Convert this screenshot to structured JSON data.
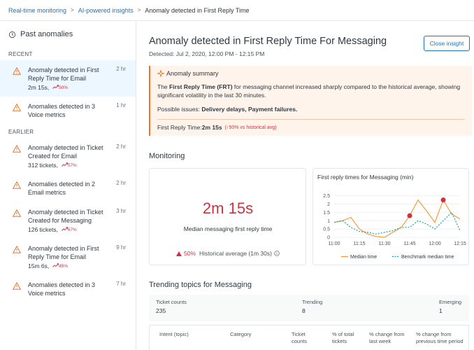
{
  "breadcrumb": {
    "items": [
      "Real-time monitoring",
      "AI-powered insights"
    ],
    "current": "Anomaly detected in First Reply Time"
  },
  "sidebar": {
    "title": "Past anomalies",
    "sections": [
      {
        "label": "RECENT",
        "items": [
          {
            "title": "Anomaly detected in First Reply Time for Email",
            "time": "2 hr",
            "value": "2m 15s,",
            "pct": "50%",
            "active": true
          },
          {
            "title": "Anomalies detected in 3 Voice metrics",
            "time": "1 hr"
          }
        ]
      },
      {
        "label": "EARLIER",
        "items": [
          {
            "title": "Anomaly detected in Ticket Created for Email",
            "time": "2 hr",
            "value": "312 tickets,",
            "pct": "57%"
          },
          {
            "title": "Anomalies detected in 2 Email metrics",
            "time": "2 hr"
          },
          {
            "title": "Anomaly detected in Ticket Created for Messaging",
            "time": "3 hr",
            "value": "126 tickets,",
            "pct": "67%"
          },
          {
            "title": "Anomaly detected in First Reply Time for Email",
            "time": "9 hr",
            "value": "15m 6s,",
            "pct": "45%"
          },
          {
            "title": "Anomalies detected in 3 Voice metrics",
            "time": "7 hr"
          }
        ]
      }
    ]
  },
  "main": {
    "title": "Anomaly detected in First Reply Time For Messaging",
    "detected": "Detected: Jul 2, 2020, 12:00 PM - 12:15 PM",
    "close_label": "Close insight",
    "summary": {
      "heading": "Anomaly summary",
      "body_pre": "The ",
      "body_bold": "First Reply Time (FRT)",
      "body_post": " for messaging channel increased sharply compared to the historical average, showing significant volatility in the last 30 minutes.",
      "issues_label": "Possible issues: ",
      "issues": "Delivery delays, Payment failures.",
      "frt_label": "First Reply Time: ",
      "frt_value": "2m 15s",
      "frt_compare": "(↑50% vs historical avg)"
    },
    "monitoring": {
      "title": "Monitoring",
      "big_value": "2m 15s",
      "big_label": "Median messaging first reply time",
      "change": "50%",
      "historical": "Historical average (1m 30s)"
    },
    "trending": {
      "title": "Trending topics for Messaging",
      "stats": [
        {
          "label": "Ticket counts",
          "value": "235"
        },
        {
          "label": "Trending",
          "value": "8"
        },
        {
          "label": "Emerging",
          "value": "1"
        }
      ],
      "columns": [
        "Intent (topic)",
        "Category",
        "Ticket counts",
        "% of total tickets",
        "% change from last week",
        "% change from previous time period"
      ]
    }
  },
  "chart_data": {
    "type": "line",
    "title": "First reply times for Messaging (min)",
    "x": [
      "11:00",
      "11:05",
      "11:10",
      "11:15",
      "11:20",
      "11:25",
      "11:30",
      "11:35",
      "11:40",
      "11:45",
      "11:50",
      "11:55",
      "12:00",
      "12:05",
      "12:10",
      "12:15"
    ],
    "x_tick_labels": [
      "11:00",
      "11:15",
      "11:30",
      "11:45",
      "12:00",
      "12:15"
    ],
    "y_tick_labels": [
      "0",
      "0.5",
      "1",
      "1.5",
      "2",
      "2.5"
    ],
    "ylim": [
      0,
      2.7
    ],
    "series": [
      {
        "name": "Median time",
        "color": "#f79a3e",
        "style": "solid",
        "values": [
          0.9,
          1.0,
          1.2,
          0.5,
          0.2,
          0.05,
          0.0,
          0.3,
          0.6,
          1.3,
          2.25,
          1.6,
          0.9,
          2.25,
          1.4,
          1.1
        ],
        "highlight_points": [
          9,
          13
        ]
      },
      {
        "name": "Benchmark median time",
        "color": "#17a2a0",
        "style": "dashed",
        "values": [
          0.9,
          1.0,
          0.6,
          0.35,
          0.3,
          0.2,
          0.3,
          0.4,
          0.6,
          0.6,
          1.0,
          0.8,
          0.5,
          1.0,
          1.5,
          0.4
        ]
      }
    ],
    "legend": "bottom"
  }
}
